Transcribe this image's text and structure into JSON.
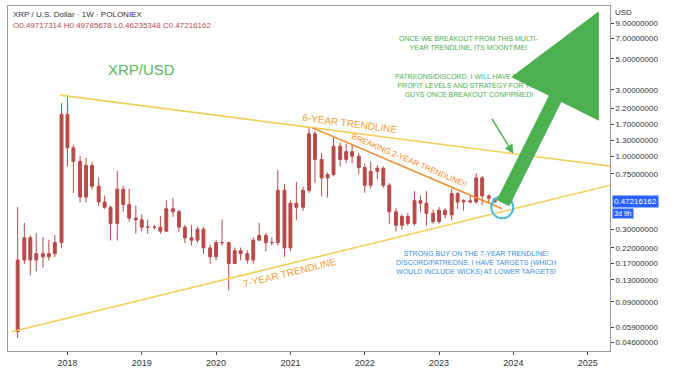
{
  "chart_data": {
    "type": "candlestick",
    "title": "XRP / U.S. Dollar · 1W · POLONIEX",
    "ohlc_text": "O0.49717314 H0.49785678 L0.46235348 C0.47216162",
    "y_unit_label": "USD",
    "x": [
      2017.33,
      2017.42,
      2017.5,
      2017.58,
      2017.67,
      2017.75,
      2017.83,
      2017.92,
      2018.0,
      2018.08,
      2018.17,
      2018.25,
      2018.33,
      2018.42,
      2018.5,
      2018.58,
      2018.67,
      2018.75,
      2018.83,
      2018.92,
      2019.0,
      2019.08,
      2019.17,
      2019.25,
      2019.33,
      2019.42,
      2019.5,
      2019.58,
      2019.67,
      2019.75,
      2019.83,
      2019.92,
      2020.0,
      2020.08,
      2020.17,
      2020.25,
      2020.33,
      2020.42,
      2020.5,
      2020.58,
      2020.67,
      2020.75,
      2020.83,
      2020.92,
      2021.0,
      2021.08,
      2021.17,
      2021.25,
      2021.33,
      2021.42,
      2021.5,
      2021.58,
      2021.67,
      2021.75,
      2021.83,
      2021.92,
      2022.0,
      2022.08,
      2022.17,
      2022.25,
      2022.33,
      2022.42,
      2022.5,
      2022.58,
      2022.67,
      2022.75,
      2022.83,
      2022.92,
      2023.0,
      2023.08,
      2023.17,
      2023.25,
      2023.33,
      2023.42,
      2023.5,
      2023.58,
      2023.67,
      2023.75
    ],
    "open": [
      0.055,
      0.18,
      0.26,
      0.18,
      0.2,
      0.19,
      0.2,
      0.24,
      2.0,
      1.15,
      0.92,
      0.51,
      0.86,
      0.61,
      0.47,
      0.43,
      0.33,
      0.58,
      0.45,
      0.36,
      0.35,
      0.31,
      0.31,
      0.31,
      0.29,
      0.42,
      0.4,
      0.31,
      0.26,
      0.25,
      0.3,
      0.22,
      0.19,
      0.24,
      0.24,
      0.17,
      0.21,
      0.2,
      0.18,
      0.25,
      0.27,
      0.24,
      0.24,
      0.57,
      0.22,
      0.46,
      0.43,
      0.57,
      1.45,
      0.95,
      0.7,
      0.74,
      1.18,
      0.95,
      1.08,
      1.0,
      0.83,
      0.62,
      0.78,
      0.82,
      0.62,
      0.4,
      0.32,
      0.37,
      0.33,
      0.48,
      0.46,
      0.39,
      0.34,
      0.41,
      0.38,
      0.54,
      0.47,
      0.48,
      0.47,
      0.7,
      0.52,
      0.49717314
    ],
    "high": [
      0.43,
      0.33,
      0.27,
      0.28,
      0.26,
      0.25,
      0.27,
      2.4,
      2.75,
      1.2,
      1.0,
      0.97,
      0.9,
      0.7,
      0.52,
      0.44,
      0.78,
      0.61,
      0.58,
      0.44,
      0.38,
      0.35,
      0.32,
      0.37,
      0.48,
      0.5,
      0.41,
      0.32,
      0.32,
      0.31,
      0.31,
      0.23,
      0.25,
      0.35,
      0.24,
      0.22,
      0.22,
      0.21,
      0.26,
      0.33,
      0.28,
      0.26,
      0.79,
      0.63,
      0.48,
      0.65,
      0.6,
      1.62,
      1.5,
      1.05,
      0.76,
      1.35,
      1.25,
      1.22,
      1.2,
      1.05,
      0.88,
      0.91,
      0.86,
      0.84,
      0.64,
      0.42,
      0.38,
      0.39,
      0.56,
      0.52,
      0.56,
      0.41,
      0.43,
      0.42,
      0.58,
      0.55,
      0.49,
      0.52,
      0.75,
      0.72,
      0.53,
      0.49785678
    ],
    "low": [
      0.05,
      0.17,
      0.14,
      0.15,
      0.16,
      0.18,
      0.19,
      0.22,
      0.85,
      0.55,
      0.47,
      0.47,
      0.58,
      0.44,
      0.42,
      0.25,
      0.25,
      0.4,
      0.34,
      0.28,
      0.29,
      0.28,
      0.3,
      0.28,
      0.29,
      0.37,
      0.29,
      0.24,
      0.23,
      0.24,
      0.2,
      0.17,
      0.18,
      0.23,
      0.11,
      0.17,
      0.18,
      0.17,
      0.17,
      0.25,
      0.21,
      0.23,
      0.23,
      0.19,
      0.21,
      0.35,
      0.41,
      0.55,
      0.65,
      0.52,
      0.51,
      0.72,
      0.85,
      0.9,
      0.9,
      0.75,
      0.55,
      0.59,
      0.69,
      0.6,
      0.33,
      0.29,
      0.3,
      0.32,
      0.32,
      0.4,
      0.32,
      0.33,
      0.33,
      0.36,
      0.35,
      0.42,
      0.41,
      0.46,
      0.46,
      0.45,
      0.47,
      0.46235348
    ],
    "close": [
      0.18,
      0.26,
      0.18,
      0.2,
      0.19,
      0.2,
      0.24,
      2.0,
      1.15,
      0.92,
      0.51,
      0.86,
      0.61,
      0.47,
      0.43,
      0.33,
      0.58,
      0.45,
      0.36,
      0.35,
      0.31,
      0.31,
      0.31,
      0.29,
      0.42,
      0.4,
      0.31,
      0.26,
      0.25,
      0.3,
      0.22,
      0.19,
      0.24,
      0.24,
      0.17,
      0.21,
      0.2,
      0.18,
      0.25,
      0.27,
      0.24,
      0.24,
      0.57,
      0.22,
      0.46,
      0.43,
      0.57,
      1.45,
      0.95,
      0.7,
      0.74,
      1.18,
      0.95,
      1.08,
      1.0,
      0.83,
      0.62,
      0.78,
      0.82,
      0.62,
      0.4,
      0.32,
      0.37,
      0.33,
      0.48,
      0.46,
      0.39,
      0.34,
      0.41,
      0.38,
      0.54,
      0.47,
      0.48,
      0.47,
      0.7,
      0.52,
      0.5,
      0.47216162
    ],
    "color": "#b84a4a",
    "last_price": {
      "value": 0.47216162,
      "label": "0.47216162",
      "countdown": "3d 9h",
      "color": "#2962ff"
    },
    "xlim": [
      2017.2,
      2025.3
    ],
    "xticks": [
      2018,
      2019,
      2020,
      2021,
      2022,
      2023,
      2024,
      2025
    ],
    "ylim": [
      0.04,
      12
    ],
    "yticks": [
      {
        "value": 9,
        "label": "9.00000000"
      },
      {
        "value": 7,
        "label": "7.00000000"
      },
      {
        "value": 5,
        "label": "5.00000000"
      },
      {
        "value": 3,
        "label": "3.00000000"
      },
      {
        "value": 2.2,
        "label": "2.20000000"
      },
      {
        "value": 1.7,
        "label": "1.70000000"
      },
      {
        "value": 1.3,
        "label": "1.30000000"
      },
      {
        "value": 1,
        "label": "1.00000000"
      },
      {
        "value": 0.75,
        "label": "0.75000000"
      },
      {
        "value": 0.3,
        "label": "0.30000000"
      },
      {
        "value": 0.22,
        "label": "0.22000000"
      },
      {
        "value": 0.17,
        "label": "0.17000000"
      },
      {
        "value": 0.13,
        "label": "0.13000000"
      },
      {
        "value": 0.09,
        "label": "0.09000000"
      },
      {
        "value": 0.059,
        "label": "0.05900000"
      },
      {
        "value": 0.046,
        "label": "0.04600000"
      }
    ],
    "log": "y",
    "grid": false,
    "trendlines": [
      {
        "name": "6-YEAR TRENDLINE",
        "x": [
          2017.9,
          2025.3
        ],
        "y": [
          2.75,
          0.85
        ],
        "color": "#f2cf5b",
        "label_color": "#f0a030",
        "label_at": {
          "x": 2021.8,
          "y": 1.72
        }
      },
      {
        "name": "7-YEAR TRENDLINE",
        "x": [
          2017.25,
          2025.3
        ],
        "y": [
          0.055,
          0.62
        ],
        "color": "#f2cf5b",
        "label_color": "#f0a030",
        "label_at": {
          "x": 2021.0,
          "y": 0.146
        }
      },
      {
        "name": "BREAKING 2-YEAR TRENDLINE!!",
        "x": [
          2021.3,
          2023.85
        ],
        "y": [
          1.6,
          0.42
        ],
        "color": "#f08a24",
        "label_color": "#f08a24",
        "label_at": {
          "x": 2022.6,
          "y": 0.93
        }
      }
    ],
    "highlight": {
      "x": 2023.85,
      "y": 0.43,
      "color": "#4fb8e0",
      "marker": "circle"
    },
    "annotations": [
      {
        "text": [
          "XRP/USD"
        ],
        "x": 2019.0,
        "y": 4.2,
        "color": "#5cb85c"
      },
      {
        "text": [
          "ONCE WE BREAKOUT FROM THIS MULTI-",
          "YEAR TRENDLINE, ITS MOONTIME!"
        ],
        "x": 2023.4,
        "y": 6.5,
        "color": "#4caf50"
      },
      {
        "text": [
          "PATREONS/DISCORD, I WILL HAVE MY TAKE",
          "PROFIT LEVELS AND STRATEGY FOR YOU",
          "GUYS ONCE BREAKOUT CONFIRMED!"
        ],
        "x": 2023.4,
        "y": 3.2,
        "color": "#4caf50"
      },
      {
        "text": [
          "STRONG BUY ON THE 7-YEAR TRENDLINE!",
          "DISCORD/PATREONS, I HAVE TARGETS (WHICH",
          "WOULD INCLUDE WICKS) AT LOWER TARGETS!"
        ],
        "x": 2023.5,
        "y": 0.17,
        "color": "#3b8fd9"
      }
    ],
    "pointer": {
      "from": [
        2023.7,
        1.9
      ],
      "to": [
        2024.0,
        1.045
      ],
      "color": "#4caf50"
    },
    "moon_arrow": {
      "from": [
        2023.85,
        0.45
      ],
      "to": [
        2025.15,
        11
      ],
      "color": "#4caf50"
    }
  }
}
